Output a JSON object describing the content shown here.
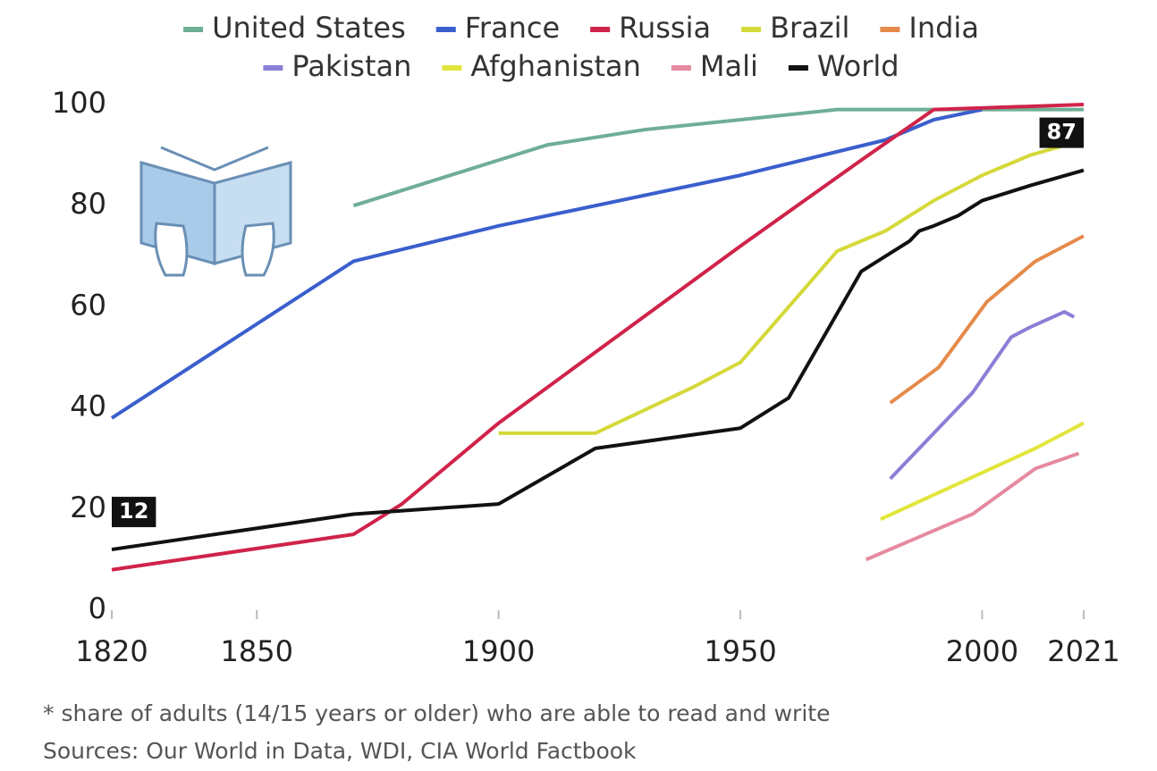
{
  "chart_data": {
    "type": "line",
    "notes": [
      "* share of adults (14/15 years or older) who are able to read and write",
      "Sources: Our World in Data, WDI, CIA World Factbook"
    ],
    "xlim": [
      1820,
      2021
    ],
    "xticks": [
      1820,
      1850,
      1900,
      1950,
      2000,
      2021
    ],
    "ylim": [
      0,
      100
    ],
    "yticks": [
      0,
      20,
      40,
      60,
      80,
      100
    ],
    "grid": false,
    "legend": "top",
    "series": [
      {
        "name": "United States",
        "color": "#6fae95",
        "x": [
          1870,
          1880,
          1900,
          1910,
          1930,
          1950,
          1970,
          2021
        ],
        "values": [
          80,
          83,
          89,
          92,
          95,
          97,
          99,
          99
        ]
      },
      {
        "name": "France",
        "color": "#3a5fcd",
        "x": [
          1820,
          1870,
          1900,
          1950,
          1980,
          1990,
          2000
        ],
        "values": [
          38,
          69,
          76,
          86,
          93,
          97,
          99
        ]
      },
      {
        "name": "Russia",
        "color": "#d0234a",
        "x": [
          1820,
          1870,
          1880,
          1900,
          1950,
          1975,
          1990,
          2021
        ],
        "values": [
          8,
          15,
          21,
          37,
          72,
          89,
          99,
          100
        ]
      },
      {
        "name": "Brazil",
        "color": "#d4d93a",
        "x": [
          1900,
          1920,
          1940,
          1950,
          1960,
          1970,
          1980,
          1990,
          2000,
          2010,
          2021
        ],
        "values": [
          35,
          35,
          44,
          49,
          60,
          71,
          75,
          81,
          86,
          90,
          93
        ]
      },
      {
        "name": "India",
        "color": "#e58a4a",
        "x": [
          1981,
          1991,
          2001,
          2011,
          2021
        ],
        "values": [
          41,
          48,
          61,
          69,
          74
        ]
      },
      {
        "name": "Pakistan",
        "color": "#8a7fd6",
        "x": [
          1981,
          1998,
          2006,
          2010,
          2017,
          2019
        ],
        "values": [
          26,
          43,
          54,
          56,
          59,
          58
        ]
      },
      {
        "name": "Afghanistan",
        "color": "#e1e63c",
        "x": [
          1979,
          2011,
          2021
        ],
        "values": [
          18,
          32,
          37
        ]
      },
      {
        "name": "Mali",
        "color": "#e58aa0",
        "x": [
          1976,
          1998,
          2011,
          2020
        ],
        "values": [
          10,
          19,
          28,
          31
        ]
      },
      {
        "name": "World",
        "color": "#111111",
        "x": [
          1820,
          1870,
          1900,
          1920,
          1950,
          1960,
          1975,
          1980,
          1985,
          1987,
          1990,
          1995,
          2000,
          2010,
          2021
        ],
        "values": [
          12,
          19,
          21,
          32,
          36,
          42,
          67,
          70,
          73,
          75,
          76,
          78,
          81,
          84,
          87
        ],
        "value_labels": [
          "12",
          null,
          null,
          null,
          null,
          null,
          null,
          null,
          null,
          null,
          null,
          null,
          null,
          null,
          "87"
        ]
      }
    ]
  }
}
